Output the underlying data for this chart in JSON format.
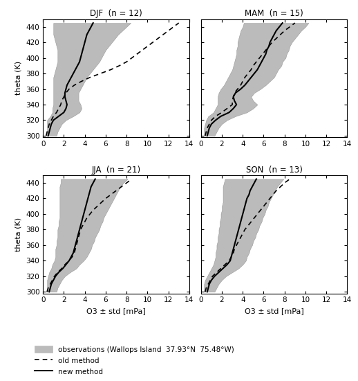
{
  "seasons": [
    "DJF",
    "MAM",
    "JJA",
    "SON"
  ],
  "n_values": [
    12,
    15,
    21,
    13
  ],
  "theta_levels": [
    300,
    305,
    310,
    315,
    320,
    325,
    330,
    335,
    340,
    345,
    350,
    355,
    360,
    365,
    370,
    375,
    380,
    385,
    390,
    395,
    400,
    405,
    410,
    415,
    420,
    425,
    430,
    435,
    440,
    445
  ],
  "obs_mean": {
    "DJF": [
      0.8,
      0.9,
      1.0,
      1.1,
      1.3,
      1.8,
      2.2,
      2.3,
      2.3,
      2.2,
      2.2,
      2.2,
      2.3,
      2.4,
      2.5,
      2.6,
      2.8,
      3.0,
      3.2,
      3.4,
      3.5,
      3.6,
      3.7,
      3.8,
      3.9,
      4.0,
      4.1,
      4.3,
      4.5,
      4.7
    ],
    "MAM": [
      0.8,
      0.9,
      1.0,
      1.2,
      1.5,
      2.0,
      2.8,
      3.2,
      3.5,
      3.3,
      3.2,
      3.4,
      3.8,
      4.2,
      4.5,
      4.8,
      5.0,
      5.2,
      5.4,
      5.5,
      5.7,
      5.8,
      5.9,
      6.0,
      6.1,
      6.3,
      6.5,
      6.7,
      7.0,
      7.2
    ],
    "JJA": [
      0.8,
      0.9,
      1.0,
      1.1,
      1.3,
      1.6,
      2.0,
      2.2,
      2.5,
      2.7,
      2.8,
      2.9,
      3.0,
      3.1,
      3.2,
      3.3,
      3.4,
      3.5,
      3.6,
      3.7,
      3.8,
      3.9,
      4.0,
      4.1,
      4.2,
      4.3,
      4.4,
      4.5,
      4.7,
      4.9
    ],
    "SON": [
      0.8,
      0.9,
      1.0,
      1.2,
      1.5,
      1.9,
      2.3,
      2.6,
      2.8,
      2.9,
      3.0,
      3.1,
      3.2,
      3.3,
      3.4,
      3.5,
      3.6,
      3.7,
      3.8,
      3.9,
      4.0,
      4.1,
      4.2,
      4.3,
      4.4,
      4.5,
      4.6,
      4.7,
      4.9,
      5.1
    ]
  },
  "obs_std": {
    "DJF": [
      0.5,
      0.5,
      0.6,
      0.7,
      0.9,
      1.1,
      1.3,
      1.4,
      1.3,
      1.2,
      1.2,
      1.2,
      1.3,
      1.4,
      1.5,
      1.6,
      1.7,
      1.8,
      1.9,
      2.0,
      2.1,
      2.2,
      2.3,
      2.5,
      2.7,
      2.9,
      3.1,
      3.3,
      3.5,
      3.7
    ],
    "MAM": [
      0.5,
      0.6,
      0.7,
      0.8,
      1.0,
      1.3,
      1.6,
      1.8,
      1.9,
      1.7,
      1.6,
      1.7,
      1.9,
      2.0,
      2.1,
      2.2,
      2.2,
      2.2,
      2.3,
      2.3,
      2.4,
      2.4,
      2.5,
      2.5,
      2.6,
      2.7,
      2.8,
      2.9,
      3.0,
      3.1
    ],
    "JJA": [
      0.5,
      0.5,
      0.6,
      0.7,
      0.8,
      1.0,
      1.2,
      1.3,
      1.4,
      1.5,
      1.6,
      1.7,
      1.7,
      1.8,
      1.8,
      1.9,
      2.0,
      2.0,
      2.1,
      2.1,
      2.2,
      2.3,
      2.4,
      2.5,
      2.6,
      2.7,
      2.8,
      2.9,
      3.0,
      3.2
    ],
    "SON": [
      0.5,
      0.6,
      0.7,
      0.8,
      0.9,
      1.1,
      1.3,
      1.4,
      1.5,
      1.5,
      1.6,
      1.6,
      1.7,
      1.7,
      1.8,
      1.8,
      1.9,
      1.9,
      2.0,
      2.0,
      2.1,
      2.1,
      2.2,
      2.2,
      2.3,
      2.4,
      2.5,
      2.6,
      2.7,
      2.8
    ]
  },
  "new_method": {
    "DJF": [
      0.5,
      0.6,
      0.7,
      0.8,
      1.0,
      1.5,
      2.0,
      2.2,
      2.3,
      2.2,
      2.1,
      2.1,
      2.2,
      2.3,
      2.5,
      2.7,
      2.9,
      3.1,
      3.3,
      3.5,
      3.6,
      3.7,
      3.8,
      3.9,
      4.0,
      4.1,
      4.2,
      4.4,
      4.6,
      4.8
    ],
    "MAM": [
      0.6,
      0.7,
      0.8,
      1.0,
      1.4,
      1.9,
      2.7,
      3.1,
      3.4,
      3.2,
      3.1,
      3.3,
      3.8,
      4.2,
      4.5,
      4.8,
      5.1,
      5.4,
      5.6,
      5.8,
      6.0,
      6.2,
      6.3,
      6.5,
      6.6,
      6.8,
      7.0,
      7.2,
      7.5,
      7.8
    ],
    "JJA": [
      0.6,
      0.7,
      0.8,
      1.0,
      1.2,
      1.5,
      1.9,
      2.2,
      2.5,
      2.7,
      2.9,
      3.0,
      3.1,
      3.2,
      3.3,
      3.4,
      3.5,
      3.6,
      3.7,
      3.8,
      3.9,
      4.0,
      4.1,
      4.2,
      4.3,
      4.4,
      4.5,
      4.6,
      4.8,
      5.0
    ],
    "SON": [
      0.6,
      0.7,
      0.8,
      1.0,
      1.3,
      1.7,
      2.1,
      2.5,
      2.8,
      2.9,
      3.0,
      3.1,
      3.2,
      3.3,
      3.4,
      3.5,
      3.6,
      3.7,
      3.8,
      3.9,
      4.0,
      4.1,
      4.2,
      4.3,
      4.4,
      4.6,
      4.7,
      4.9,
      5.1,
      5.3
    ]
  },
  "old_method": {
    "DJF": [
      0.3,
      0.4,
      0.5,
      0.6,
      0.8,
      1.0,
      1.3,
      1.5,
      1.7,
      1.8,
      2.0,
      2.2,
      2.5,
      3.0,
      3.7,
      4.5,
      5.5,
      6.5,
      7.3,
      8.0,
      8.5,
      9.0,
      9.5,
      10.0,
      10.5,
      11.0,
      11.5,
      12.0,
      12.5,
      13.0
    ],
    "MAM": [
      0.4,
      0.5,
      0.6,
      0.8,
      1.0,
      1.4,
      2.0,
      2.5,
      3.0,
      3.0,
      3.1,
      3.2,
      3.5,
      3.8,
      4.0,
      4.2,
      4.5,
      4.8,
      5.0,
      5.3,
      5.6,
      5.9,
      6.2,
      6.5,
      6.8,
      7.2,
      7.6,
      8.0,
      8.5,
      9.0
    ],
    "JJA": [
      0.4,
      0.5,
      0.7,
      0.9,
      1.1,
      1.4,
      1.8,
      2.1,
      2.5,
      2.8,
      3.0,
      3.1,
      3.2,
      3.3,
      3.4,
      3.5,
      3.6,
      3.8,
      4.0,
      4.2,
      4.5,
      4.8,
      5.2,
      5.6,
      6.0,
      6.5,
      7.0,
      7.5,
      8.0,
      8.5
    ],
    "SON": [
      0.4,
      0.5,
      0.7,
      0.9,
      1.1,
      1.5,
      1.9,
      2.3,
      2.7,
      2.9,
      3.1,
      3.2,
      3.4,
      3.6,
      3.8,
      4.0,
      4.2,
      4.5,
      4.8,
      5.1,
      5.4,
      5.7,
      6.0,
      6.3,
      6.6,
      6.9,
      7.2,
      7.6,
      8.0,
      8.5
    ]
  },
  "xlim": [
    0,
    14
  ],
  "ylim": [
    298,
    450
  ],
  "xticks": [
    0,
    2,
    4,
    6,
    8,
    10,
    12,
    14
  ],
  "yticks": [
    300,
    320,
    340,
    360,
    380,
    400,
    420,
    440
  ],
  "obs_color": "#bbbbbb",
  "obs_edge_color": "#888888",
  "new_method_color": "#000000",
  "old_method_color": "#000000",
  "xlabel_bottom": "O3 ± std [mPa]",
  "ylabel": "theta (K)",
  "legend_obs": "observations (Wallops Island  37.93°N  75.48°W)",
  "legend_old": "old method",
  "legend_new": "new method"
}
